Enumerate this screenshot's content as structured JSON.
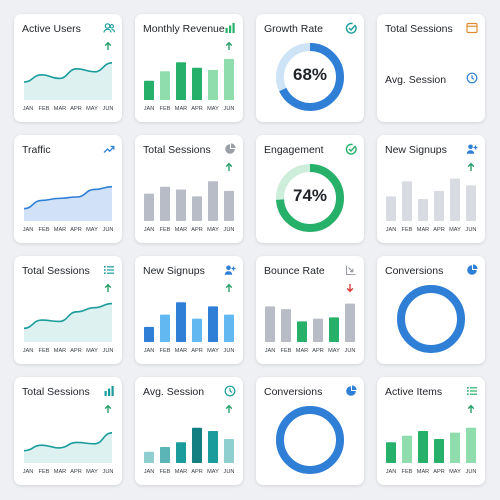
{
  "months": [
    "JAN",
    "FEB",
    "MAR",
    "APR",
    "MAY",
    "JUN"
  ],
  "colors": {
    "teal": "#1a9c9c",
    "teal_fill": "#d7efef",
    "green": "#27b06a",
    "green_light": "#8fdcac",
    "blue": "#2f7fd6",
    "blue_light": "#62b8f0",
    "blue_fill": "#c9dcf7",
    "gray": "#b8bcc6",
    "gray_light": "#d8dbe1",
    "donut_track": "#cfe3f7",
    "donut_track_green": "#cdeedb"
  },
  "cards": [
    {
      "id": "active-users",
      "title": "Active Users",
      "icon": "users-icon",
      "arrow": "up",
      "chart": {
        "type": "area",
        "color": "teal",
        "values": [
          30,
          42,
          36,
          52,
          47,
          62
        ],
        "ylim": [
          0,
          80
        ]
      }
    },
    {
      "id": "monthly-revenue",
      "title": "Monthly Revenue",
      "icon": "bar-chart-icon",
      "arrow": "up",
      "chart": {
        "type": "bar",
        "palette": "green",
        "values": [
          28,
          42,
          55,
          47,
          44,
          60
        ],
        "ylim": [
          0,
          70
        ]
      }
    },
    {
      "id": "growth-rate",
      "title": "Growth Rate",
      "icon": "check-circle-icon",
      "chart": {
        "type": "donut",
        "value": 68,
        "label": "68%",
        "color": "blue",
        "track": "donut_track"
      }
    },
    {
      "id": "total-sessions-avg",
      "title": "Total Sessions",
      "icon": "window-icon",
      "secondary": {
        "title": "Avg. Session",
        "icon": "clock-icon"
      }
    },
    {
      "id": "traffic",
      "title": "Traffic",
      "icon": "trend-up-icon",
      "chart": {
        "type": "area",
        "color": "blue",
        "values": [
          18,
          30,
          33,
          35,
          46,
          50
        ],
        "ylim": [
          0,
          70
        ]
      }
    },
    {
      "id": "total-sessions-2",
      "title": "Total Sessions",
      "icon": "pie-icon",
      "arrow": "up",
      "chart": {
        "type": "bar",
        "palette": "gray",
        "values": [
          40,
          50,
          46,
          36,
          58,
          44
        ],
        "ylim": [
          0,
          70
        ]
      }
    },
    {
      "id": "engagement",
      "title": "Engagement",
      "icon": "check-circle-icon",
      "chart": {
        "type": "donut",
        "value": 74,
        "label": "74%",
        "color": "green",
        "track": "donut_track_green"
      }
    },
    {
      "id": "new-signups",
      "title": "New Signups",
      "icon": "add-user-icon",
      "arrow": "up",
      "chart": {
        "type": "bar",
        "palette": "gray_light",
        "values": [
          36,
          58,
          32,
          44,
          62,
          52
        ],
        "ylim": [
          0,
          70
        ]
      }
    },
    {
      "id": "total-sessions-3",
      "title": "Total Sessions",
      "icon": "list-icon",
      "arrow": "up",
      "chart": {
        "type": "area",
        "color": "teal",
        "values": [
          20,
          32,
          30,
          44,
          50,
          56
        ],
        "ylim": [
          0,
          70
        ]
      }
    },
    {
      "id": "new-signups-2",
      "title": "New Signups",
      "icon": "add-user-icon",
      "arrow": "up",
      "chart": {
        "type": "bar",
        "palette": "blue",
        "values": [
          22,
          40,
          58,
          34,
          52,
          40
        ],
        "ylim": [
          0,
          70
        ]
      }
    },
    {
      "id": "bounce-rate",
      "title": "Bounce Rate",
      "icon": "trend-down-icon",
      "arrow": "down",
      "chart": {
        "type": "bar",
        "palette": "mixed",
        "values": [
          52,
          48,
          30,
          34,
          36,
          56
        ],
        "ylim": [
          0,
          70
        ]
      }
    },
    {
      "id": "conversions",
      "title": "Conversions",
      "icon": "pie-icon",
      "chart": {
        "type": "donut",
        "value": 100,
        "label": "",
        "color": "blue",
        "track": "donut_track"
      }
    },
    {
      "id": "total-sessions-4",
      "title": "Total Sessions",
      "icon": "bar-chart-icon",
      "arrow": "up",
      "chart": {
        "type": "area",
        "color": "teal",
        "values": [
          18,
          26,
          22,
          30,
          28,
          44
        ],
        "ylim": [
          0,
          70
        ]
      }
    },
    {
      "id": "avg-session",
      "title": "Avg. Session",
      "icon": "clock-icon",
      "arrow": "up",
      "chart": {
        "type": "bar",
        "palette": "teal",
        "values": [
          14,
          20,
          26,
          44,
          40,
          30
        ],
        "ylim": [
          0,
          60
        ]
      }
    },
    {
      "id": "conversions-2",
      "title": "Conversions",
      "icon": "pie-icon",
      "chart": {
        "type": "donut",
        "value": 100,
        "label": "",
        "color": "blue",
        "track": "donut_track"
      }
    },
    {
      "id": "active-items",
      "title": "Active Items",
      "icon": "list-icon",
      "arrow": "up",
      "chart": {
        "type": "bar",
        "palette": "green",
        "values": [
          26,
          34,
          40,
          30,
          38,
          44
        ],
        "ylim": [
          0,
          60
        ]
      }
    }
  ]
}
